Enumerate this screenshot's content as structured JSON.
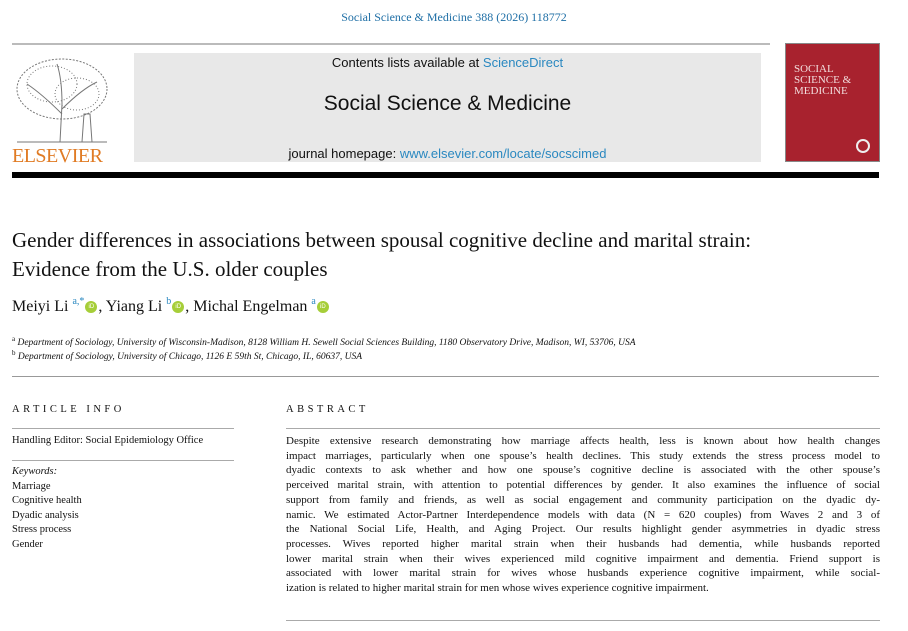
{
  "header": {
    "citation": "Social Science & Medicine 388 (2026) 118772",
    "contents_prefix": "Contents lists available at ",
    "contents_link": "ScienceDirect",
    "journal_title": "Social Science & Medicine",
    "homepage_prefix": "journal homepage: ",
    "homepage_link": "www.elsevier.com/locate/socscimed",
    "publisher_logo": "ELSEVIER",
    "cover_title": "SOCIAL SCIENCE & MEDICINE"
  },
  "article": {
    "title": "Gender differences in associations between spousal cognitive decline and marital strain: Evidence from the U.S. older couples",
    "authors": [
      {
        "name": "Meiyi Li",
        "sup": "a,*"
      },
      {
        "name": "Yiang Li",
        "sup": "b"
      },
      {
        "name": "Michal Engelman",
        "sup": "a"
      }
    ],
    "affiliations": [
      {
        "mark": "a",
        "text": "Department of Sociology, University of Wisconsin-Madison, 8128 William H. Sewell Social Sciences Building, 1180 Observatory Drive, Madison, WI, 53706, USA"
      },
      {
        "mark": "b",
        "text": "Department of Sociology, University of Chicago, 1126 E 59th St, Chicago, IL, 60637, USA"
      }
    ]
  },
  "article_info": {
    "heading": "ARTICLE INFO",
    "handling_editor": "Handling Editor: Social Epidemiology Office",
    "keywords_label": "Keywords:",
    "keywords": [
      "Marriage",
      "Cognitive health",
      "Dyadic analysis",
      "Stress process",
      "Gender"
    ]
  },
  "abstract": {
    "heading": "ABSTRACT",
    "lines": [
      "Despite extensive research demonstrating how marriage affects health, less is known about how health changes",
      "impact marriages, particularly when one spouse’s health declines. This study extends the stress process model to",
      "dyadic contexts to ask whether and how one spouse’s cognitive decline is associated with the other spouse’s",
      "perceived marital strain, with attention to potential differences by gender. It also examines the influence of social",
      "support from family and friends, as well as social engagement and community participation on the dyadic dy-",
      "namic. We estimated Actor-Partner Interdependence models with data (N = 620 couples) from Waves 2 and 3 of",
      "the National Social Life, Health, and Aging Project. Our results highlight gender asymmetries in dyadic stress",
      "processes. Wives reported higher marital strain when their husbands had dementia, while husbands reported",
      "lower marital strain when their wives experienced mild cognitive impairment and dementia. Friend support is",
      "associated with lower marital strain for wives whose husbands experience cognitive impairment, while social-",
      "ization is related to higher marital strain for men whose wives experience cognitive impairment."
    ]
  }
}
